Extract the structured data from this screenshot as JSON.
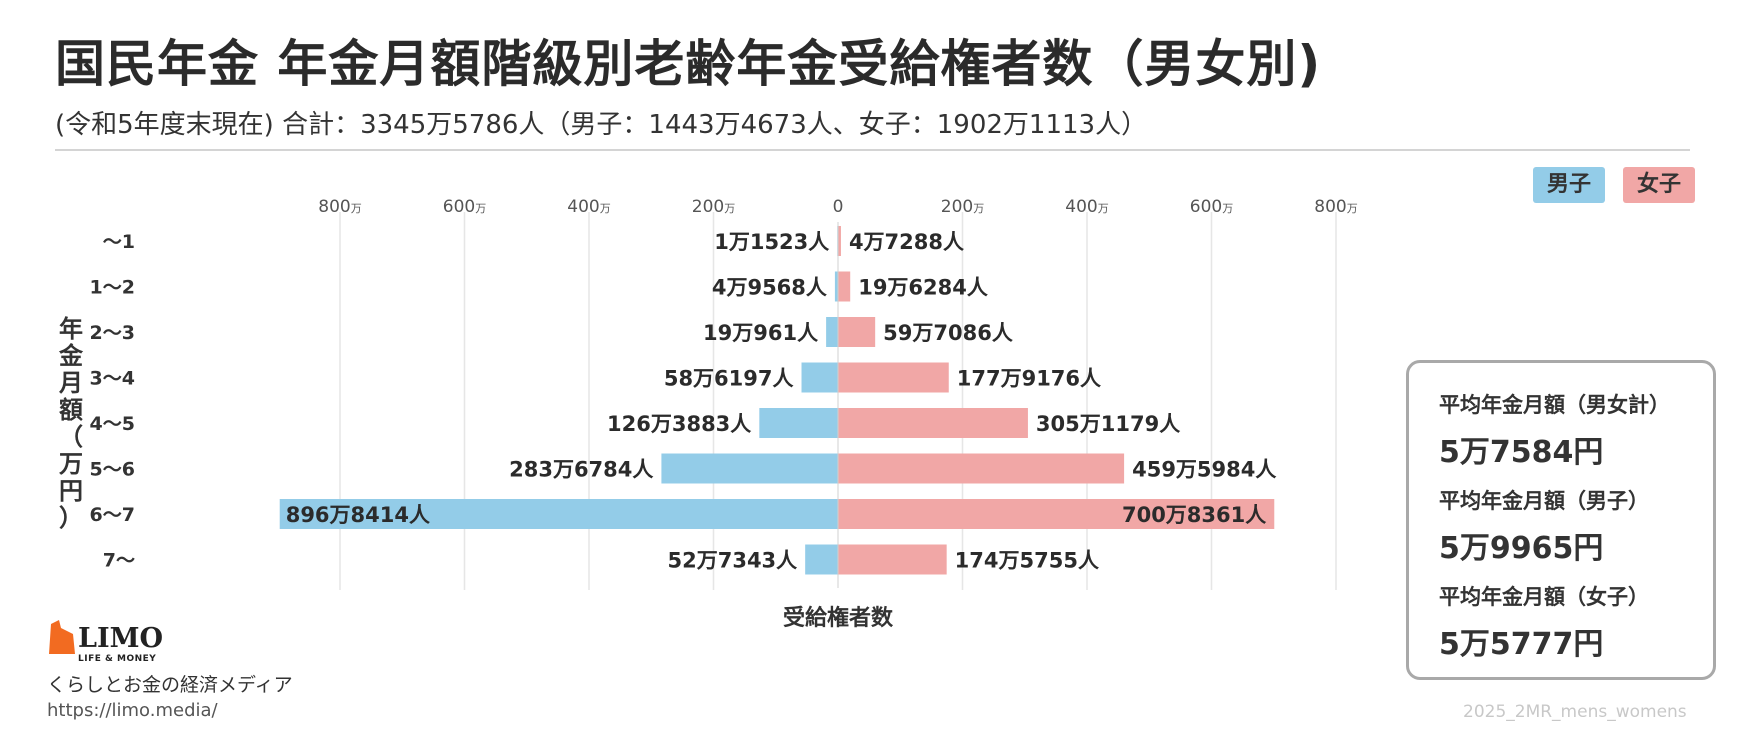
{
  "header": {
    "title": "国民年金 年金月額階級別老齢年金受給権者数（男女別)",
    "subtitle": "(令和5年度末現在) 合計：3345万5786人（男子：1443万4673人、女子：1902万1113人）"
  },
  "legend": {
    "male": "男子",
    "female": "女子"
  },
  "summary": {
    "total_label": "平均年金月額（男女計）",
    "total_value": "5万7584円",
    "male_label": "平均年金月額（男子）",
    "male_value": "5万9965円",
    "female_label": "平均年金月額（女子）",
    "female_value": "5万5777円"
  },
  "branding": {
    "logo_text": "LIMO",
    "logo_sub": "LIFE & MONEY",
    "tagline": "くらしとお金の経済メディア",
    "url": "https://limo.media/",
    "credit": "2025_2MR_mens_womens"
  },
  "colors": {
    "male": "#93cce8",
    "female": "#f1a7a6",
    "logo": "#f26b21"
  },
  "chart_data": {
    "type": "bar",
    "orientation": "horizontal-population-pyramid",
    "ylabel": "年金月額（万円）",
    "xlabel": "受給権者数",
    "categories": [
      "〜1",
      "1〜2",
      "2〜3",
      "3〜4",
      "4〜5",
      "5〜6",
      "6〜7",
      "7〜"
    ],
    "xlim": [
      0,
      800
    ],
    "x_ticks": [
      0,
      200,
      400,
      600,
      800
    ],
    "x_tick_unit": "万",
    "grid": true,
    "legend_position": "top-right",
    "series": [
      {
        "name": "男子",
        "side": "left",
        "values": [
          1.1523,
          4.9568,
          19.0961,
          58.6197,
          126.3883,
          283.6784,
          896.8414,
          52.7343
        ],
        "labels": [
          "1万1523人",
          "4万9568人",
          "19万961人",
          "58万6197人",
          "126万3883人",
          "283万6784人",
          "896万8414人",
          "52万7343人"
        ]
      },
      {
        "name": "女子",
        "side": "right",
        "values": [
          4.7288,
          19.6284,
          59.7086,
          177.9176,
          305.1179,
          459.5984,
          700.8361,
          174.5755
        ],
        "labels": [
          "4万7288人",
          "19万6284人",
          "59万7086人",
          "177万9176人",
          "305万1179人",
          "459万5984人",
          "700万8361人",
          "174万5755人"
        ]
      }
    ]
  }
}
